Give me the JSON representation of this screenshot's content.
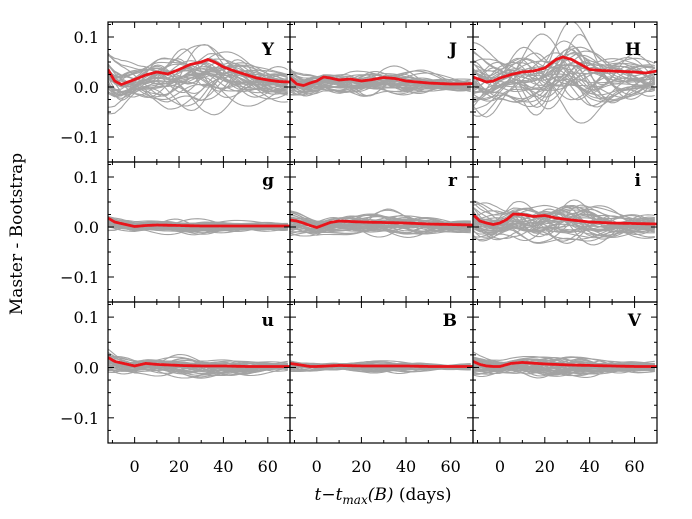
{
  "chart_data": {
    "type": "line",
    "title": "",
    "xlabel": "t−t_max(B) (days)",
    "xlabel_parts": {
      "t": "t",
      "minus": "−",
      "tsub": "t",
      "sub": "max",
      "paren": "(B)",
      "unit": " (days)"
    },
    "ylabel": "Master - Bootstrap",
    "xlim": [
      -12,
      70
    ],
    "ylim": [
      -0.15,
      0.13
    ],
    "x_ticks": [
      0,
      20,
      40,
      60
    ],
    "x_tick_labels": [
      "0",
      "20",
      "40",
      "60"
    ],
    "y_ticks": [
      0.1,
      0.0,
      -0.1
    ],
    "y_tick_labels": [
      "0.1",
      "0.0",
      "−0.1"
    ],
    "grid": false,
    "layout": "3x3 grid, shared axes",
    "colors": {
      "master": "#e8141b",
      "bootstrap": "#a3a3a3"
    },
    "panels": [
      {
        "label": "Y",
        "spread": 0.045,
        "master": {
          "x": [
            -12,
            -9,
            -6,
            -3,
            0,
            5,
            10,
            15,
            20,
            25,
            30,
            33,
            36,
            40,
            45,
            50,
            55,
            60,
            65,
            70
          ],
          "y": [
            0.035,
            0.012,
            0.005,
            0.01,
            0.015,
            0.024,
            0.03,
            0.026,
            0.035,
            0.045,
            0.05,
            0.055,
            0.05,
            0.04,
            0.032,
            0.025,
            0.018,
            0.014,
            0.011,
            0.01
          ]
        }
      },
      {
        "label": "J",
        "spread": 0.02,
        "master": {
          "x": [
            -12,
            -9,
            -6,
            -3,
            0,
            3,
            6,
            10,
            15,
            20,
            25,
            30,
            35,
            40,
            45,
            50,
            55,
            60,
            65,
            70
          ],
          "y": [
            0.018,
            0.006,
            0.003,
            0.008,
            0.012,
            0.02,
            0.018,
            0.014,
            0.016,
            0.012,
            0.015,
            0.019,
            0.017,
            0.012,
            0.01,
            0.008,
            0.007,
            0.006,
            0.006,
            0.007
          ]
        }
      },
      {
        "label": "H",
        "spread": 0.055,
        "master": {
          "x": [
            -12,
            -9,
            -6,
            -3,
            0,
            5,
            10,
            15,
            20,
            25,
            28,
            32,
            36,
            40,
            45,
            50,
            55,
            60,
            65,
            70
          ],
          "y": [
            0.02,
            0.015,
            0.01,
            0.012,
            0.018,
            0.025,
            0.03,
            0.032,
            0.038,
            0.055,
            0.06,
            0.055,
            0.045,
            0.035,
            0.033,
            0.032,
            0.031,
            0.03,
            0.028,
            0.032
          ]
        }
      },
      {
        "label": "g",
        "spread": 0.01,
        "master": {
          "x": [
            -12,
            -9,
            -6,
            -3,
            0,
            5,
            10,
            20,
            30,
            40,
            50,
            60,
            70
          ],
          "y": [
            0.018,
            0.01,
            0.007,
            0.004,
            0.001,
            0.003,
            0.004,
            0.003,
            0.002,
            0.002,
            0.002,
            0.002,
            0.002
          ]
        }
      },
      {
        "label": "r",
        "spread": 0.018,
        "master": {
          "x": [
            -12,
            -9,
            -6,
            -3,
            0,
            3,
            6,
            10,
            15,
            20,
            30,
            40,
            50,
            60,
            70
          ],
          "y": [
            0.014,
            0.012,
            0.008,
            0.003,
            -0.001,
            0.004,
            0.009,
            0.012,
            0.011,
            0.01,
            0.009,
            0.008,
            0.006,
            0.005,
            0.004
          ]
        }
      },
      {
        "label": "i",
        "spread": 0.03,
        "master": {
          "x": [
            -12,
            -9,
            -6,
            -3,
            0,
            3,
            6,
            10,
            15,
            20,
            25,
            30,
            40,
            50,
            60,
            70
          ],
          "y": [
            0.025,
            0.012,
            0.008,
            0.005,
            0.008,
            0.015,
            0.026,
            0.025,
            0.021,
            0.023,
            0.018,
            0.015,
            0.01,
            0.008,
            0.007,
            0.006
          ]
        }
      },
      {
        "label": "u",
        "spread": 0.015,
        "master": {
          "x": [
            -12,
            -9,
            -6,
            -3,
            0,
            5,
            10,
            20,
            30,
            40,
            50,
            60,
            70
          ],
          "y": [
            0.02,
            0.012,
            0.009,
            0.006,
            0.003,
            0.008,
            0.006,
            0.004,
            0.003,
            0.003,
            0.002,
            0.002,
            0.002
          ]
        }
      },
      {
        "label": "B",
        "spread": 0.008,
        "master": {
          "x": [
            -12,
            -9,
            -6,
            -3,
            0,
            5,
            10,
            20,
            30,
            40,
            50,
            60,
            70
          ],
          "y": [
            0.008,
            0.006,
            0.004,
            0.002,
            0.002,
            0.003,
            0.004,
            0.003,
            0.003,
            0.003,
            0.002,
            0.002,
            0.002
          ]
        }
      },
      {
        "label": "V",
        "spread": 0.015,
        "master": {
          "x": [
            -12,
            -9,
            -6,
            -3,
            0,
            5,
            10,
            20,
            30,
            40,
            50,
            60,
            70
          ],
          "y": [
            0.012,
            0.006,
            0.003,
            0.002,
            0.002,
            0.008,
            0.01,
            0.007,
            0.005,
            0.004,
            0.003,
            0.002,
            0.002
          ]
        }
      }
    ]
  }
}
